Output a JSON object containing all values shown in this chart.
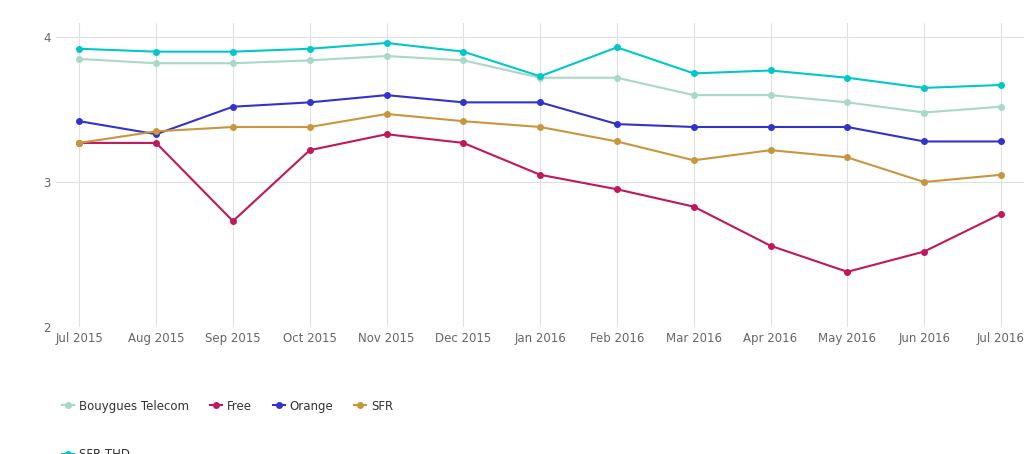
{
  "x_labels": [
    "Jul 2015",
    "Aug 2015",
    "Sep 2015",
    "Oct 2015",
    "Nov 2015",
    "Dec 2015",
    "Jan 2016",
    "Feb 2016",
    "Mar 2016",
    "Apr 2016",
    "May 2016",
    "Jun 2016",
    "Jul 2016"
  ],
  "series": {
    "Bouygues Telecom": {
      "color": "#a8d8c8",
      "values": [
        3.85,
        3.82,
        3.82,
        3.84,
        3.87,
        3.84,
        3.72,
        3.72,
        3.6,
        3.6,
        3.55,
        3.48,
        3.52
      ]
    },
    "Free": {
      "color": "#c0175d",
      "values": [
        3.27,
        3.27,
        2.73,
        3.22,
        3.33,
        3.27,
        3.05,
        2.95,
        2.83,
        2.56,
        2.38,
        2.52,
        2.78
      ]
    },
    "Orange": {
      "color": "#3333cc",
      "values": [
        3.42,
        3.33,
        3.52,
        3.55,
        3.6,
        3.55,
        3.55,
        3.4,
        3.38,
        3.38,
        3.38,
        3.28,
        3.28
      ]
    },
    "SFR": {
      "color": "#c8963c",
      "values": [
        3.27,
        3.35,
        3.38,
        3.38,
        3.47,
        3.42,
        3.38,
        3.28,
        3.15,
        3.22,
        3.17,
        3.0,
        3.05
      ]
    },
    "SFR THD": {
      "color": "#00c8c8",
      "values": [
        3.92,
        3.9,
        3.9,
        3.92,
        3.96,
        3.9,
        3.73,
        3.93,
        3.75,
        3.77,
        3.72,
        3.65,
        3.67
      ]
    }
  },
  "ylim": [
    2,
    4.1
  ],
  "yticks": [
    2,
    3,
    4
  ],
  "background_color": "#ffffff",
  "grid_color": "#e0e0e0",
  "marker_size": 4,
  "linewidth": 1.5,
  "legend_row1": [
    "Bouygues Telecom",
    "Free",
    "Orange",
    "SFR"
  ],
  "legend_row2": [
    "SFR THD"
  ]
}
